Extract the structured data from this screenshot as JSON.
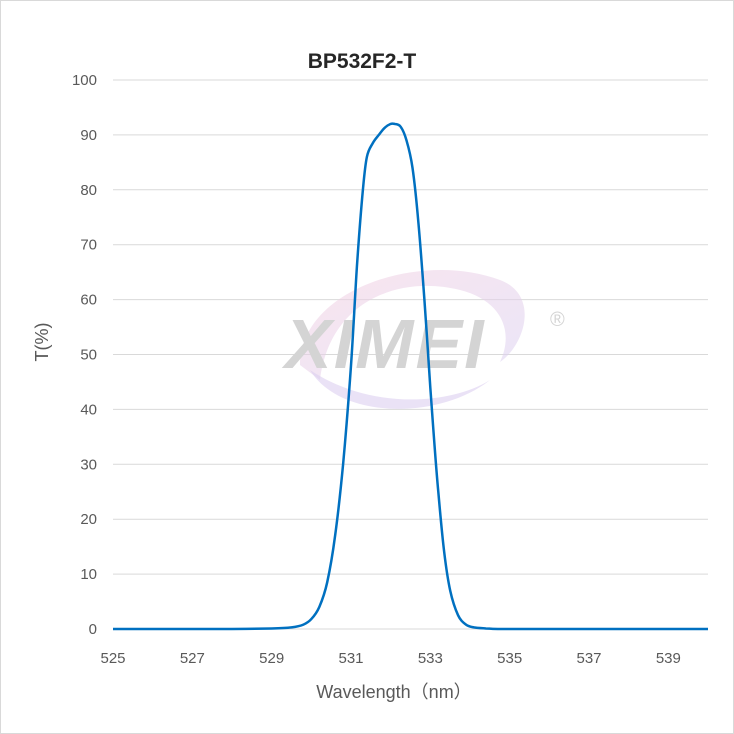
{
  "chart_data": {
    "type": "line",
    "title": "BP532F2-T",
    "xlabel": "Wavelength（nm）",
    "ylabel": "T(%)",
    "xlim": [
      525,
      540
    ],
    "ylim": [
      0,
      100
    ],
    "x_ticks": [
      "525",
      "527",
      "529",
      "531",
      "533",
      "535",
      "537",
      "539"
    ],
    "y_ticks": [
      "0",
      "10",
      "20",
      "30",
      "40",
      "50",
      "60",
      "70",
      "80",
      "90",
      "100"
    ],
    "grid": "horizontal",
    "legend": "none",
    "series": [
      {
        "color": "#0070c0",
        "x": [
          525,
          526,
          527,
          528,
          529,
          529.5,
          529.8,
          530.0,
          530.2,
          530.4,
          530.6,
          530.8,
          531.0,
          531.15,
          531.3,
          531.4,
          531.55,
          531.7,
          531.85,
          532.0,
          532.1,
          532.25,
          532.4,
          532.55,
          532.7,
          532.85,
          533.0,
          533.1,
          533.2,
          533.35,
          533.5,
          533.7,
          533.9,
          534.1,
          534.4,
          534.7,
          535,
          536,
          537,
          538,
          539,
          540
        ],
        "y": [
          0,
          0,
          0,
          0,
          0.1,
          0.3,
          0.8,
          1.8,
          4,
          8.5,
          17,
          30,
          48,
          66,
          80,
          86,
          88.5,
          90,
          91.3,
          92,
          92,
          91.5,
          89,
          84,
          74,
          60,
          44,
          34,
          25,
          14,
          7,
          2.5,
          0.8,
          0.3,
          0.1,
          0,
          0,
          0,
          0,
          0,
          0,
          0
        ]
      }
    ]
  },
  "watermark": {
    "text": "XIMEI",
    "mark": "®"
  }
}
